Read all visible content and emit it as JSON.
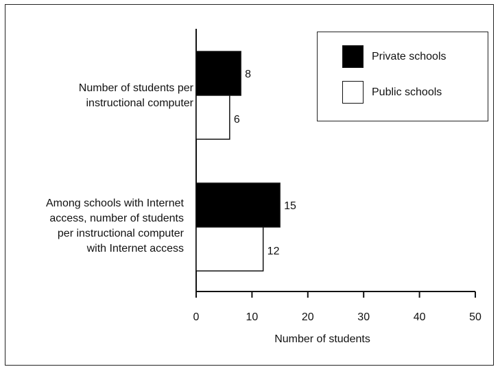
{
  "chart_data": {
    "type": "bar",
    "orientation": "horizontal",
    "categories": [
      "Number of students per instructional computer",
      "Among schools with Internet access, number of students per instructional computer with Internet access"
    ],
    "category_lines": [
      [
        "Number of students per",
        "instructional computer"
      ],
      [
        "Among schools with Internet",
        "access, number of students",
        "per instructional computer",
        "with Internet access"
      ]
    ],
    "series": [
      {
        "name": "Private schools",
        "values": [
          8,
          15
        ],
        "color": "#000000"
      },
      {
        "name": "Public schools",
        "values": [
          6,
          12
        ],
        "color": "#ffffff"
      }
    ],
    "data_labels": [
      [
        "8",
        "15"
      ],
      [
        "6",
        "12"
      ]
    ],
    "xlabel": "Number of students",
    "ylabel": "",
    "title": "",
    "xlim": [
      0,
      50
    ],
    "xticks": [
      0,
      10,
      20,
      30,
      40,
      50
    ],
    "legend": "top-right",
    "grid": false
  }
}
